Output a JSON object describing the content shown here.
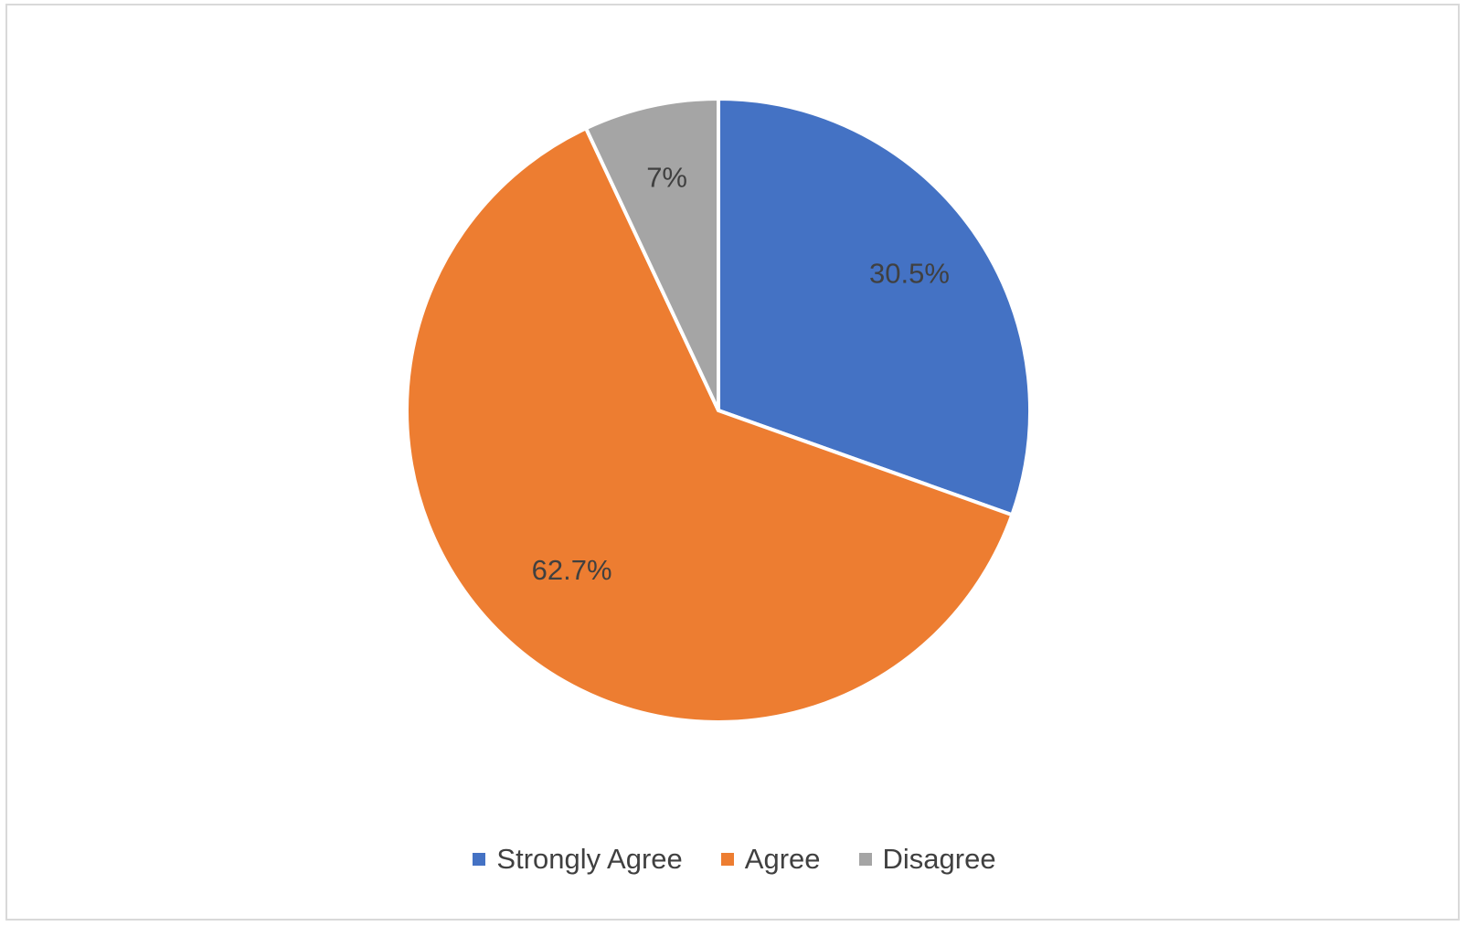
{
  "chart_data": {
    "type": "pie",
    "title": "",
    "categories": [
      "Strongly Agree",
      "Agree",
      "Disagree"
    ],
    "values": [
      30.5,
      62.7,
      7
    ],
    "data_labels": [
      "30.5%",
      "62.7%",
      "7%"
    ],
    "colors": [
      "#4472C4",
      "#ED7D31",
      "#A5A5A5"
    ],
    "start_angle_deg": 0,
    "direction": "clockwise",
    "legend": {
      "position": "bottom",
      "items": [
        {
          "label": "Strongly Agree",
          "color": "#4472C4"
        },
        {
          "label": "Agree",
          "color": "#ED7D31"
        },
        {
          "label": "Disagree",
          "color": "#A5A5A5"
        }
      ]
    }
  }
}
